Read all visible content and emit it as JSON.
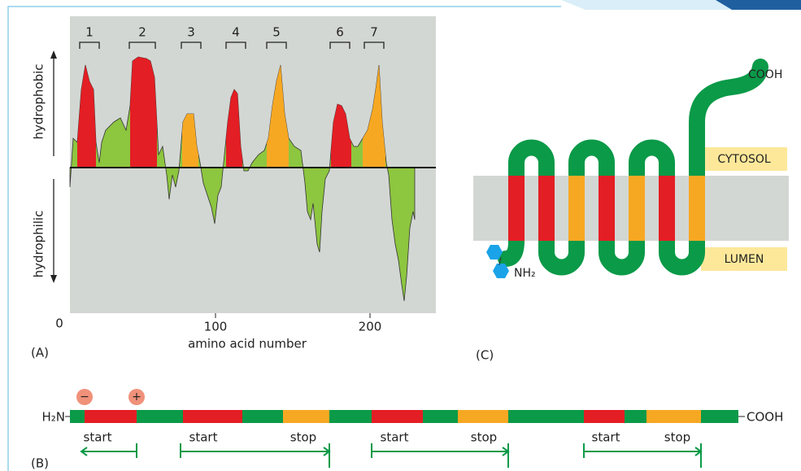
{
  "panel_a": {
    "label": "(A)",
    "segments": [
      "1",
      "2",
      "3",
      "4",
      "5",
      "6",
      "7"
    ],
    "y_top": "hydrophobic",
    "y_bottom": "hydrophilic",
    "x_label": "amino acid number",
    "x_ticks": [
      "0",
      "100",
      "200"
    ]
  },
  "panel_b": {
    "label": "(B)",
    "n_term": "H₂N",
    "c_term": "COOH",
    "charges": [
      "−",
      "+"
    ],
    "labels": [
      "start",
      "start",
      "stop",
      "start",
      "stop",
      "start",
      "stop"
    ]
  },
  "panel_c": {
    "label": "(C)",
    "c_term": "COOH",
    "n_term": "NH₂",
    "cytosol": "CYTOSOL",
    "lumen": "LUMEN"
  }
}
